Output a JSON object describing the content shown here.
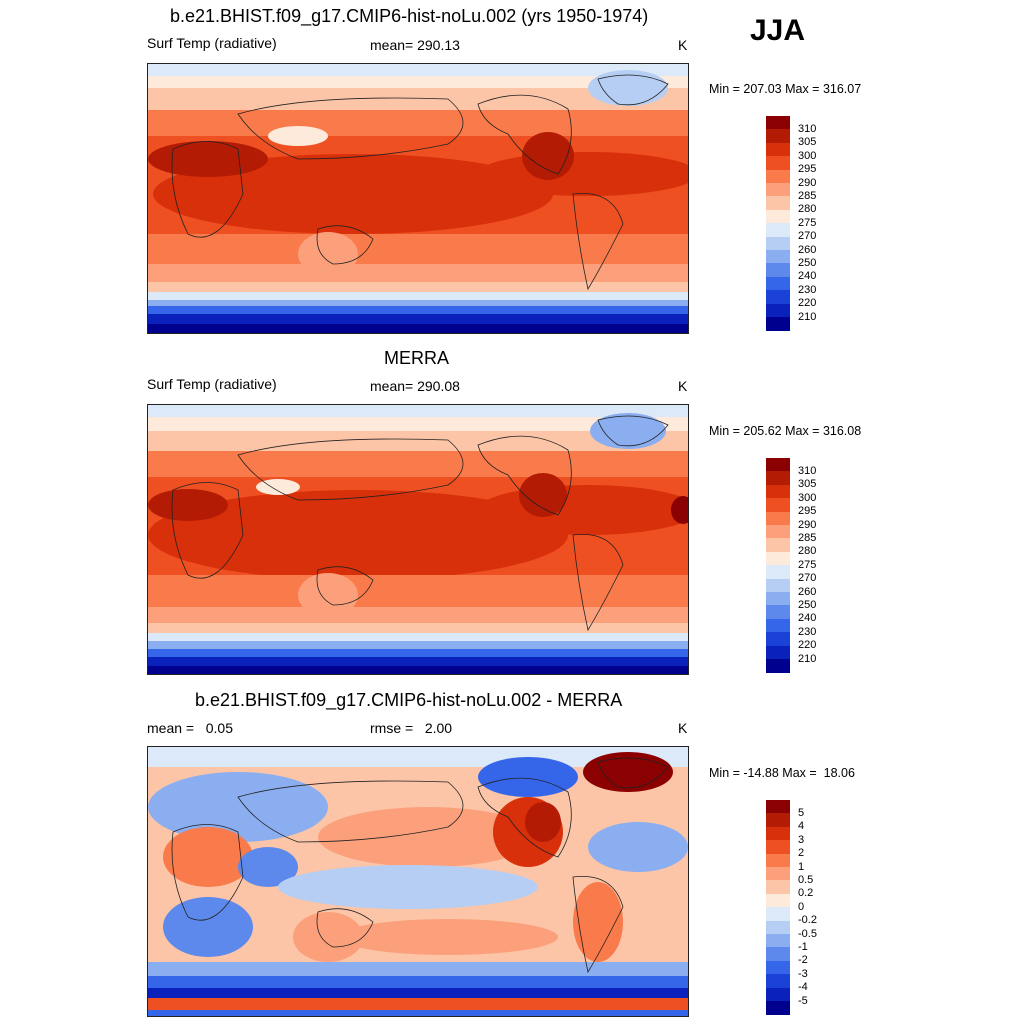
{
  "season": "JJA",
  "panels": [
    {
      "title": "b.e21.BHIST.f09_g17.CMIP6-hist-noLu.002 (yrs 1950-1974)",
      "left_label": "Surf Temp (radiative)",
      "center_label": "mean= 290.13",
      "units": "K",
      "minmax": "Min = 207.03 Max = 316.07",
      "colorbar": {
        "labels": [
          "310",
          "305",
          "300",
          "295",
          "290",
          "285",
          "280",
          "275",
          "270",
          "260",
          "250",
          "240",
          "230",
          "220",
          "210"
        ],
        "colors": [
          "#8b0000",
          "#b41b04",
          "#d8300a",
          "#ee5021",
          "#f97a4a",
          "#fca07c",
          "#fcc5a7",
          "#feeada",
          "#dbe9f9",
          "#b6cef4",
          "#8aaef0",
          "#5d89ec",
          "#3566ea",
          "#1a42d8",
          "#0a22bb",
          "#00008f"
        ]
      }
    },
    {
      "title": "MERRA",
      "left_label": "Surf Temp (radiative)",
      "center_label": "mean= 290.08",
      "units": "K",
      "minmax": "Min = 205.62 Max = 316.08",
      "colorbar": {
        "labels": [
          "310",
          "305",
          "300",
          "295",
          "290",
          "285",
          "280",
          "275",
          "270",
          "260",
          "250",
          "240",
          "230",
          "220",
          "210"
        ],
        "colors": [
          "#8b0000",
          "#b41b04",
          "#d8300a",
          "#ee5021",
          "#f97a4a",
          "#fca07c",
          "#fcc5a7",
          "#feeada",
          "#dbe9f9",
          "#b6cef4",
          "#8aaef0",
          "#5d89ec",
          "#3566ea",
          "#1a42d8",
          "#0a22bb",
          "#00008f"
        ]
      }
    },
    {
      "title": "b.e21.BHIST.f09_g17.CMIP6-hist-noLu.002 - MERRA",
      "left_label": "mean =   0.05",
      "center_label": "rmse =   2.00",
      "units": "K",
      "minmax": "Min = -14.88 Max =  18.06",
      "colorbar": {
        "labels": [
          "5",
          "4",
          "3",
          "2",
          "1",
          "0.5",
          "0.2",
          "0",
          "-0.2",
          "-0.5",
          "-1",
          "-2",
          "-3",
          "-4",
          "-5"
        ],
        "colors": [
          "#8b0000",
          "#b41b04",
          "#d8300a",
          "#ee5021",
          "#f97a4a",
          "#fca07c",
          "#fcc5a7",
          "#feeada",
          "#dbe9f9",
          "#b6cef4",
          "#8aaef0",
          "#5d89ec",
          "#3566ea",
          "#1a42d8",
          "#0a22bb",
          "#00008f"
        ]
      }
    }
  ]
}
